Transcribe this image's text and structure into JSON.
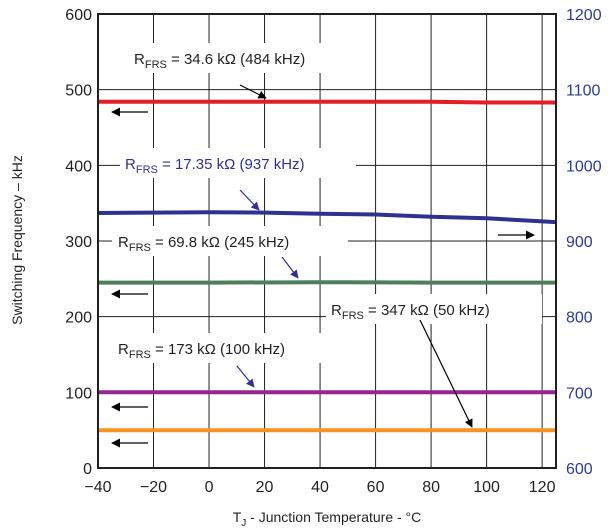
{
  "chart_data": {
    "type": "line",
    "xlabel": "T",
    "xlabel_sub": "J",
    "xlabel_rest": " - Junction Temperature - °C",
    "ylabel": "Switching Frequency – kHz",
    "xlim": [
      -40,
      125
    ],
    "ylim": [
      0,
      600
    ],
    "y2lim": [
      600,
      1200
    ],
    "x_ticks": [
      "−40",
      "−20",
      "0",
      "20",
      "40",
      "60",
      "80",
      "100",
      "120"
    ],
    "y_ticks": [
      "0",
      "100",
      "200",
      "300",
      "400",
      "500",
      "600"
    ],
    "y2_ticks": [
      "600",
      "700",
      "800",
      "900",
      "1000",
      "1100",
      "1200"
    ],
    "grid": true,
    "series": [
      {
        "x": [
          -40,
          0,
          40,
          80,
          100,
          125
        ],
        "y": [
          484,
          484,
          484,
          484,
          483,
          483
        ],
        "color": "#e31e24",
        "axis": "left"
      },
      {
        "x": [
          -40,
          -20,
          0,
          20,
          40,
          60,
          80,
          100,
          125
        ],
        "y": [
          937,
          937.5,
          938,
          937.5,
          936,
          935,
          932,
          930,
          925
        ],
        "color": "#2e3192",
        "axis": "right"
      },
      {
        "x": [
          -40,
          0,
          40,
          80,
          100,
          125
        ],
        "y": [
          245,
          245,
          245.5,
          245,
          245,
          245
        ],
        "color": "#4c7f5b",
        "axis": "left"
      },
      {
        "x": [
          -40,
          0,
          40,
          80,
          100,
          125
        ],
        "y": [
          100,
          100,
          100,
          100,
          100,
          100
        ],
        "color": "#93278f",
        "axis": "left"
      },
      {
        "x": [
          -40,
          0,
          40,
          80,
          100,
          125
        ],
        "y": [
          50,
          50,
          50,
          50,
          50,
          50
        ],
        "color": "#f7941d",
        "axis": "left"
      }
    ],
    "annotations": [
      {
        "pre": "R",
        "sub": "FRS",
        "post": " = 34.6 kΩ (484 kHz)",
        "color": "#231f20"
      },
      {
        "pre": "R",
        "sub": "FRS",
        "post": " = 17.35 kΩ (937 kHz)",
        "color": "#2e3192"
      },
      {
        "pre": "R",
        "sub": "FRS",
        "post": " = 69.8 kΩ (245 kHz)",
        "color": "#231f20"
      },
      {
        "pre": "R",
        "sub": "FRS",
        "post": " = 347 kΩ (50 kHz)",
        "color": "#231f20"
      },
      {
        "pre": "R",
        "sub": "FRS",
        "post": " = 173 kΩ (100 kHz)",
        "color": "#231f20"
      }
    ]
  }
}
